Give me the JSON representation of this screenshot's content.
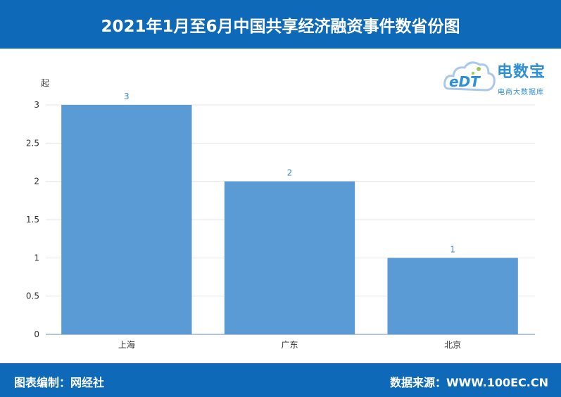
{
  "header": {
    "title": "2021年1月至6月中国共享经济融资事件数省份图"
  },
  "logo": {
    "name": "电数宝",
    "subtitle": "电商大数据库",
    "mark": "eDT"
  },
  "footer": {
    "left": "图表编制：网经社",
    "right": "数据来源：WWW.100EC.CN"
  },
  "colors": {
    "header_bg": "#0e69b9",
    "bar": "#5b9bd5",
    "data_label": "#3e8cd1"
  },
  "chart_data": {
    "type": "bar",
    "categories": [
      "上海",
      "广东",
      "北京"
    ],
    "values": [
      3,
      2,
      1
    ],
    "unit": "起",
    "ylim": [
      0,
      3
    ],
    "yticks": [
      "0",
      "0.5",
      "1",
      "1.5",
      "2",
      "2.5",
      "3"
    ],
    "grid": true
  }
}
